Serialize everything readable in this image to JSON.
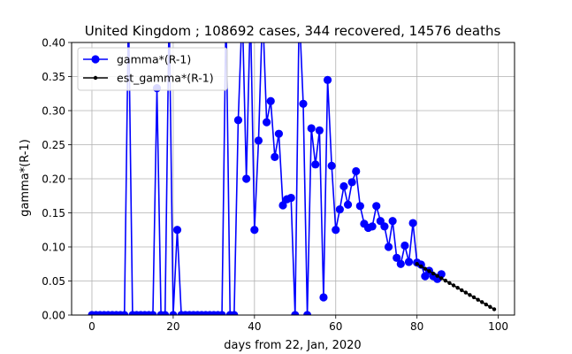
{
  "chart_data": {
    "type": "line",
    "title": "United Kingdom ; 108692 cases, 344 recovered, 14576 deaths",
    "xlabel": "days from 22, Jan, 2020",
    "ylabel": "gamma*(R-1)",
    "xlim": [
      -5,
      104
    ],
    "ylim": [
      0,
      0.4
    ],
    "xticks": [
      0,
      20,
      40,
      60,
      80,
      100
    ],
    "yticks": [
      0.0,
      0.05,
      0.1,
      0.15,
      0.2,
      0.25,
      0.3,
      0.35,
      0.4
    ],
    "ytick_labels": [
      "0.00",
      "0.05",
      "0.10",
      "0.15",
      "0.20",
      "0.25",
      "0.30",
      "0.35",
      "0.40"
    ],
    "grid": true,
    "legend_position": "top-left",
    "series": [
      {
        "name": "gamma*(R-1)",
        "color": "#0000ff",
        "marker": "large-circle",
        "x": [
          0,
          1,
          2,
          3,
          4,
          5,
          6,
          7,
          8,
          9,
          10,
          11,
          12,
          13,
          14,
          15,
          16,
          17,
          18,
          19,
          20,
          21,
          22,
          23,
          24,
          25,
          26,
          27,
          28,
          29,
          30,
          31,
          32,
          33,
          34,
          35,
          36,
          37,
          38,
          39,
          40,
          41,
          42,
          43,
          44,
          45,
          46,
          47,
          48,
          49,
          50,
          51,
          52,
          53,
          54,
          55,
          56,
          57,
          58,
          59,
          60,
          61,
          62,
          63,
          64,
          65,
          66,
          67,
          68,
          69,
          70,
          71,
          72,
          73,
          74,
          75,
          76,
          77,
          78,
          79,
          80,
          81,
          82,
          83,
          84,
          85,
          86
        ],
        "y": [
          0,
          0,
          0,
          0,
          0,
          0,
          0,
          0,
          0,
          0.45,
          0,
          0,
          0,
          0,
          0,
          0,
          0.333,
          0,
          0,
          0.45,
          0,
          0.125,
          0,
          0,
          0,
          0,
          0,
          0,
          0,
          0,
          0,
          0,
          0,
          0.45,
          0,
          0,
          0.286,
          0.45,
          0.2,
          0.45,
          0.125,
          0.256,
          0.45,
          0.283,
          0.314,
          0.232,
          0.266,
          0.161,
          0.17,
          0.172,
          0,
          0.45,
          0.31,
          0,
          0.274,
          0.221,
          0.271,
          0.026,
          0.345,
          0.219,
          0.125,
          0.155,
          0.189,
          0.162,
          0.195,
          0.211,
          0.16,
          0.134,
          0.128,
          0.13,
          0.16,
          0.138,
          0.13,
          0.1,
          0.138,
          0.084,
          0.075,
          0.102,
          0.078,
          0.135,
          0.077,
          0.074,
          0.057,
          0.065,
          0.057,
          0.053,
          0.06
        ]
      },
      {
        "name": "est_gamma*(R-1)",
        "color": "#000000",
        "marker": "small-dot",
        "x": [
          80,
          81,
          82,
          83,
          84,
          85,
          86,
          87,
          88,
          89,
          90,
          91,
          92,
          93,
          94,
          95,
          96,
          97,
          98,
          99
        ],
        "y": [
          0.075,
          0.0715,
          0.068,
          0.0645,
          0.061,
          0.0575,
          0.054,
          0.0505,
          0.047,
          0.0435,
          0.04,
          0.0365,
          0.033,
          0.0295,
          0.026,
          0.0225,
          0.019,
          0.0155,
          0.012,
          0.0085
        ]
      }
    ]
  }
}
